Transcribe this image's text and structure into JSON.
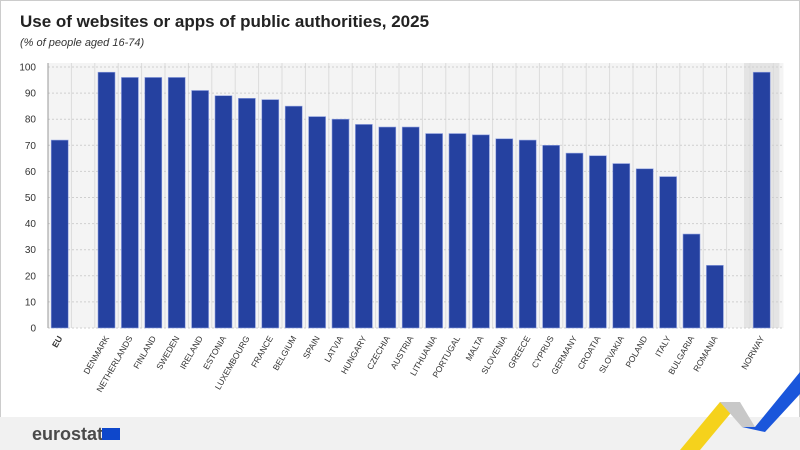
{
  "header": {
    "title": "Use of websites or apps of public authorities, 2025",
    "subtitle": "(% of people aged 16-74)"
  },
  "footer": {
    "logo_text": "eurostat"
  },
  "colors": {
    "bar": "#2541a0",
    "plot_bg": "#f4f4f4",
    "highlight_bg": "#e4e4e4"
  },
  "chart_data": {
    "type": "bar",
    "title": "Use of websites or apps of public authorities, 2025",
    "subtitle": "(% of people aged 16-74)",
    "xlabel": "",
    "ylabel": "",
    "ylim": [
      0,
      100
    ],
    "yticks": [
      0,
      10,
      20,
      30,
      40,
      50,
      60,
      70,
      80,
      90,
      100
    ],
    "grid": true,
    "categories": [
      "EU",
      "",
      "DENMARK",
      "NETHERLANDS",
      "FINLAND",
      "SWEDEN",
      "IRELAND",
      "ESTONIA",
      "LUXEMBOURG",
      "FRANCE",
      "BELGIUM",
      "SPAIN",
      "LATVIA",
      "HUNGARY",
      "CZECHIA",
      "AUSTRIA",
      "LITHUANIA",
      "PORTUGAL",
      "MALTA",
      "SLOVENIA",
      "GREECE",
      "CYPRUS",
      "GERMANY",
      "CROATIA",
      "SLOVAKIA",
      "POLAND",
      "ITALY",
      "BULGARIA",
      "ROMANIA",
      "",
      "NORWAY"
    ],
    "values": [
      72,
      null,
      98,
      96,
      96,
      96,
      91,
      89,
      88,
      87.5,
      85,
      81,
      80,
      78,
      77,
      77,
      74.5,
      74.5,
      74,
      72.5,
      72,
      70,
      67,
      66,
      63,
      61,
      58,
      36,
      24,
      null,
      98
    ]
  }
}
